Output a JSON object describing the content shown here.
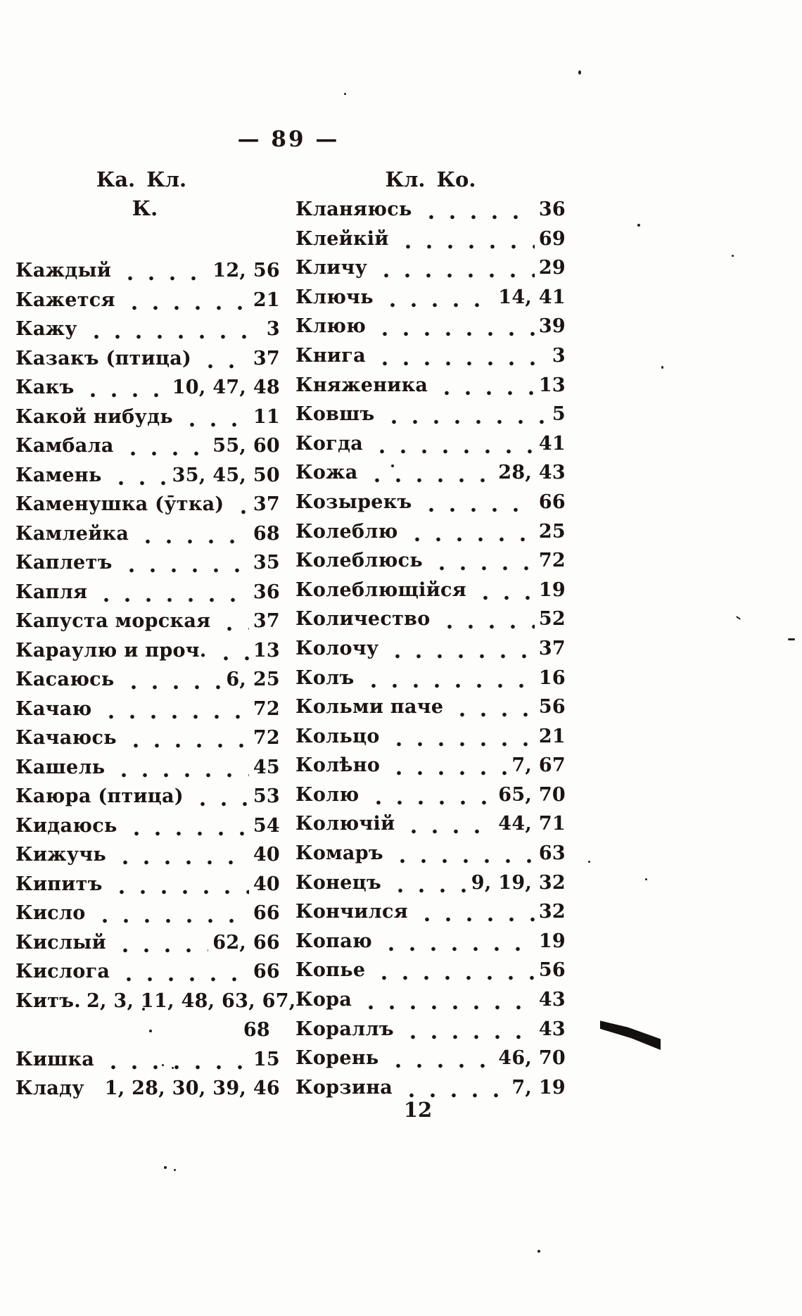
{
  "page": {
    "number_display": "— 89 —",
    "left_guide": "Ка. Кл.",
    "right_guide": "Кл. Ко.",
    "section_letter": "К.",
    "signature_mark": "12"
  },
  "left_column": {
    "entries": [
      {
        "word": "Каждый",
        "pages": "12, 56"
      },
      {
        "word": "Кажется",
        "pages": "21"
      },
      {
        "word": "Кажу",
        "pages": "3"
      },
      {
        "word": "Казакъ (птица)",
        "pages": "37"
      },
      {
        "word": "Какъ",
        "pages": "10, 47, 48"
      },
      {
        "word": "Какой нибудь",
        "pages": "11"
      },
      {
        "word": "Камбала",
        "pages": "55, 60"
      },
      {
        "word": "Камень",
        "pages": "35, 45, 50"
      },
      {
        "word": "Каменушка (ӯтка)",
        "pages": "37"
      },
      {
        "word": "Камлейка",
        "pages": "68"
      },
      {
        "word": "Каплетъ",
        "pages": "35"
      },
      {
        "word": "Капля",
        "pages": "36"
      },
      {
        "word": "Капуста морская",
        "pages": "37"
      },
      {
        "word": "Караулю и проч.",
        "pages": "13"
      },
      {
        "word": "Касаюсь",
        "pages": "6, 25"
      },
      {
        "word": "Качаю",
        "pages": "72"
      },
      {
        "word": "Качаюсь",
        "pages": "72"
      },
      {
        "word": "Кашель",
        "pages": "45"
      },
      {
        "word": "Каюра (птица)",
        "pages": "53"
      },
      {
        "word": "Кидаюсь",
        "pages": "54"
      },
      {
        "word": "Кижучь",
        "pages": "40"
      },
      {
        "word": "Кипитъ",
        "pages": "40"
      },
      {
        "word": "Кисло",
        "pages": "66"
      },
      {
        "word": "Кислый",
        "pages": "62, 66"
      },
      {
        "word": "Кислога",
        "pages": "66"
      },
      {
        "word": "Китъ.",
        "pages": "2, 3, 11, 48, 63, 67,",
        "tight": true
      },
      {
        "word": "",
        "pages": "68",
        "cont": true
      },
      {
        "word": "Кишка",
        "pages": "15"
      },
      {
        "word": "Кладу",
        "pages": "1, 28, 30, 39, 46"
      }
    ]
  },
  "right_column": {
    "entries": [
      {
        "word": "Кланяюсь",
        "pages": "36"
      },
      {
        "word": "Клейкій",
        "pages": "69"
      },
      {
        "word": "Кличу",
        "pages": "29"
      },
      {
        "word": "Ключь",
        "pages": "14, 41"
      },
      {
        "word": "Клюю",
        "pages": "39"
      },
      {
        "word": "Книга",
        "pages": "3"
      },
      {
        "word": "Княженика",
        "pages": "13"
      },
      {
        "word": "Ковшъ",
        "pages": "5"
      },
      {
        "word": "Когда",
        "pages": "41"
      },
      {
        "word": "Кожа",
        "pages": "28, 43"
      },
      {
        "word": "Козырекъ",
        "pages": "66"
      },
      {
        "word": "Колеблю",
        "pages": "25"
      },
      {
        "word": "Колеблюсь",
        "pages": "72"
      },
      {
        "word": "Колеблющійся",
        "pages": "19"
      },
      {
        "word": "Количество",
        "pages": "52"
      },
      {
        "word": "Колочу",
        "pages": "37"
      },
      {
        "word": "Колъ",
        "pages": "16"
      },
      {
        "word": "Кольми паче",
        "pages": "56"
      },
      {
        "word": "Кольцо",
        "pages": "21"
      },
      {
        "word": "Колѣно",
        "pages": "7, 67"
      },
      {
        "word": "Колю",
        "pages": "65, 70"
      },
      {
        "word": "Колючій",
        "pages": "44, 71"
      },
      {
        "word": "Комаръ",
        "pages": "63"
      },
      {
        "word": "Конецъ",
        "pages": "9, 19, 32"
      },
      {
        "word": "Кончился",
        "pages": "32"
      },
      {
        "word": "Копаю",
        "pages": "19"
      },
      {
        "word": "Копье",
        "pages": "56"
      },
      {
        "word": "Кора",
        "pages": "43"
      },
      {
        "word": "Кораллъ",
        "pages": "43"
      },
      {
        "word": "Корень",
        "pages": "46, 70"
      },
      {
        "word": "Корзина",
        "pages": "7, 19"
      }
    ]
  }
}
